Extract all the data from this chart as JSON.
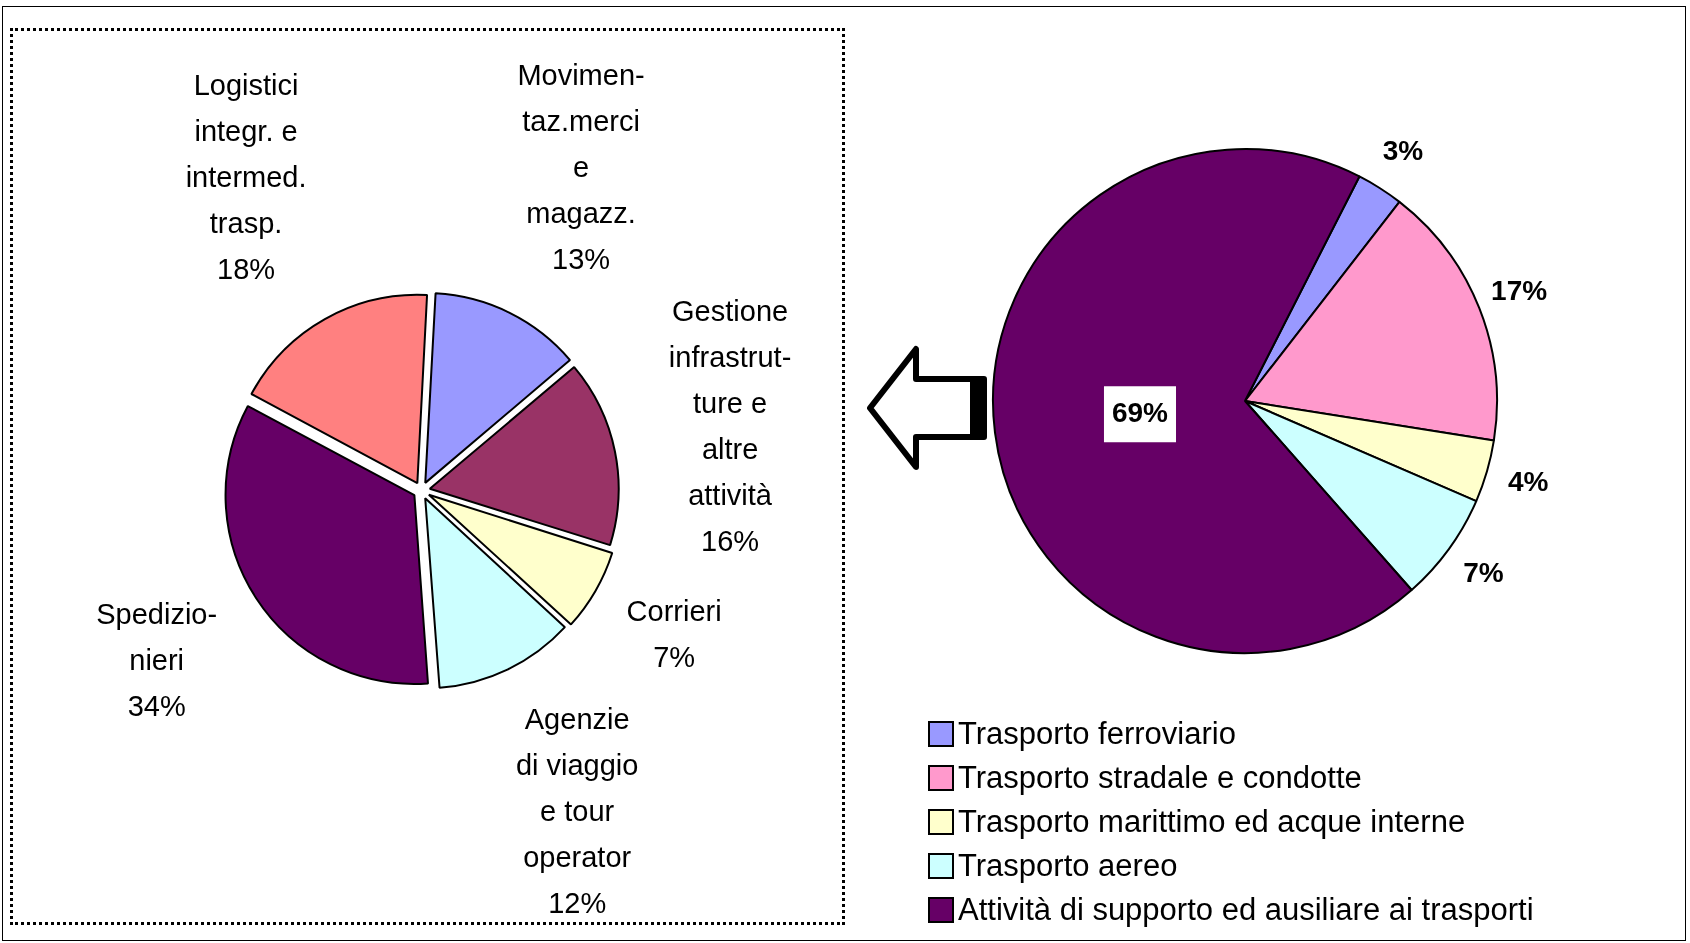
{
  "chart_data": [
    {
      "type": "pie",
      "categories": [
        "Movimen-\ntaz.merci\ne\nmagazz.",
        "Gestione\ninfrastrut-\nture e\naltre\nattività",
        "Corrieri",
        "Agenzie\ndi viaggio\ne tour\noperator",
        "Spedizio-\nnieri",
        "Logistici\nintegr. e\nintermed.\ntrasp."
      ],
      "values": [
        13,
        16,
        7,
        12,
        34,
        18
      ],
      "value_labels": [
        "13%",
        "16%",
        "7%",
        "12%",
        "34%",
        "18%"
      ],
      "colors": [
        "#9999ff",
        "#993366",
        "#ffffcc",
        "#ccffff",
        "#660066",
        "#ff8080"
      ],
      "legend": false
    },
    {
      "type": "pie",
      "categories": [
        "Trasporto ferroviario",
        "Trasporto stradale e condotte",
        "Trasporto marittimo ed acque interne",
        "Trasporto aereo",
        "Attività di supporto ed ausiliare ai trasporti"
      ],
      "values": [
        3,
        17,
        4,
        7,
        69
      ],
      "value_labels": [
        "3%",
        "17%",
        "4%",
        "7%",
        "69%"
      ],
      "colors": [
        "#9999ff",
        "#ff99cc",
        "#ffffcc",
        "#ccffff",
        "#660066"
      ],
      "legend": "bottom"
    }
  ]
}
